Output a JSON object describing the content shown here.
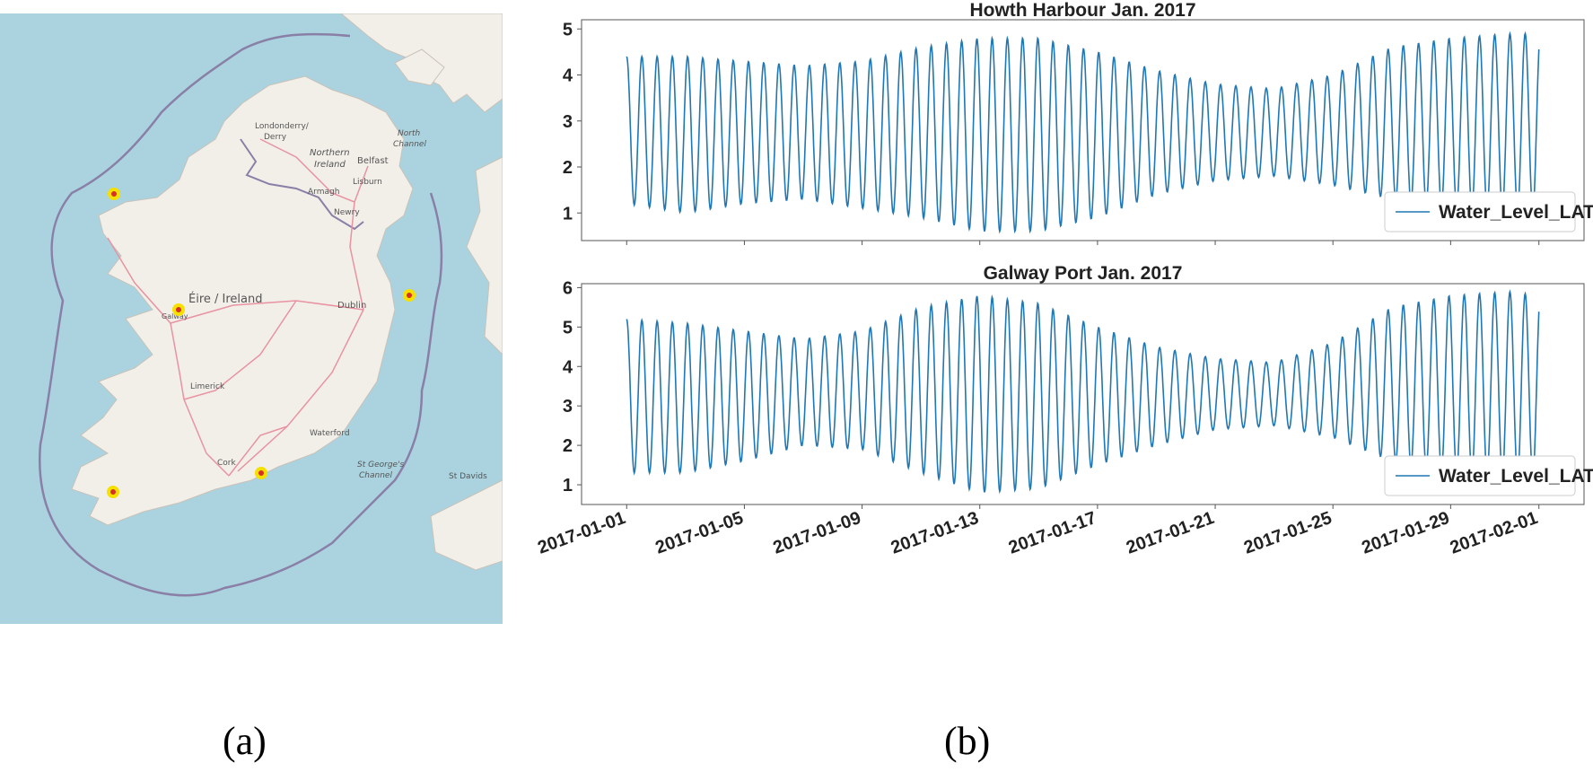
{
  "captions": {
    "left": "(a)",
    "right": "(b)"
  },
  "map": {
    "country_label": "Éire / Ireland",
    "region_label_1": "Northern",
    "region_label_2": "Ireland",
    "sea_label_1": "North",
    "sea_label_2": "Channel",
    "channel_label_1": "St George's",
    "channel_label_2": "Channel",
    "places": {
      "londonderry_1": "Londonderry/",
      "londonderry_2": "Derry",
      "belfast": "Belfast",
      "lisburn": "Lisburn",
      "armagh": "Armagh",
      "newry": "Newry",
      "dublin": "Dublin",
      "galway": "Galway",
      "limerick": "Limerick",
      "waterford": "Waterford",
      "cork": "Cork",
      "st_davids": "St Davids"
    },
    "colors": {
      "sea": "#aad3df",
      "land": "#f2efe9",
      "border": "#8a7fa6",
      "road": "#e892a2",
      "marker": "#f5e000",
      "marker_core": "#d6302a"
    }
  },
  "chart_data": [
    {
      "type": "line",
      "title": "Howth Harbour  Jan.  2017",
      "xlabel": "",
      "ylabel": "",
      "x_start": "2017-01-01",
      "x_end": "2017-02-01",
      "ylim": [
        0.4,
        5.2
      ],
      "yticks": [
        1,
        2,
        3,
        4,
        5
      ],
      "xticks": [
        "2017-01-01",
        "2017-01-05",
        "2017-01-09",
        "2017-01-13",
        "2017-01-17",
        "2017-01-21",
        "2017-01-25",
        "2017-01-29",
        "2017-02-01"
      ],
      "legend": {
        "position": "lower-right"
      },
      "tidal_period_hours": 12.42,
      "series": [
        {
          "name": "Water_Level_LAT",
          "color": "#1f77b4",
          "envelope": {
            "dates": [
              "2017-01-01",
              "2017-01-03",
              "2017-01-05",
              "2017-01-07",
              "2017-01-09",
              "2017-01-11",
              "2017-01-13",
              "2017-01-15",
              "2017-01-17",
              "2017-01-19",
              "2017-01-21",
              "2017-01-23",
              "2017-01-25",
              "2017-01-27",
              "2017-01-29",
              "2017-01-31",
              "2017-02-01"
            ],
            "high": [
              4.4,
              4.4,
              4.3,
              4.2,
              4.3,
              4.6,
              4.8,
              4.8,
              4.5,
              4.1,
              3.8,
              3.7,
              4.0,
              4.6,
              4.8,
              4.9,
              4.9
            ],
            "low": [
              1.2,
              1.0,
              1.2,
              1.3,
              1.1,
              0.9,
              0.6,
              0.6,
              0.9,
              1.4,
              1.7,
              1.8,
              1.6,
              1.3,
              1.1,
              1.05,
              1.05
            ]
          }
        }
      ]
    },
    {
      "type": "line",
      "title": "Galway Port  Jan.  2017",
      "xlabel": "",
      "ylabel": "",
      "x_start": "2017-01-01",
      "x_end": "2017-02-01",
      "ylim": [
        0.5,
        6.1
      ],
      "yticks": [
        1,
        2,
        3,
        4,
        5,
        6
      ],
      "xticks": [
        "2017-01-01",
        "2017-01-05",
        "2017-01-09",
        "2017-01-13",
        "2017-01-17",
        "2017-01-21",
        "2017-01-25",
        "2017-01-29",
        "2017-02-01"
      ],
      "legend": {
        "position": "lower-right"
      },
      "tidal_period_hours": 12.42,
      "series": [
        {
          "name": "Water_Level_LAT",
          "color": "#1f77b4",
          "envelope": {
            "dates": [
              "2017-01-01",
              "2017-01-03",
              "2017-01-05",
              "2017-01-07",
              "2017-01-09",
              "2017-01-11",
              "2017-01-13",
              "2017-01-15",
              "2017-01-17",
              "2017-01-19",
              "2017-01-21",
              "2017-01-23",
              "2017-01-25",
              "2017-01-27",
              "2017-01-29",
              "2017-01-31",
              "2017-02-01"
            ],
            "high": [
              5.2,
              5.1,
              4.9,
              4.7,
              4.9,
              5.5,
              5.8,
              5.6,
              5.0,
              4.5,
              4.2,
              4.1,
              4.6,
              5.5,
              5.8,
              5.9,
              5.8
            ],
            "low": [
              1.3,
              1.3,
              1.6,
              2.0,
              1.9,
              1.3,
              0.8,
              0.9,
              1.5,
              2.0,
              2.4,
              2.5,
              2.2,
              1.6,
              1.3,
              1.2,
              1.2
            ]
          }
        }
      ]
    }
  ]
}
